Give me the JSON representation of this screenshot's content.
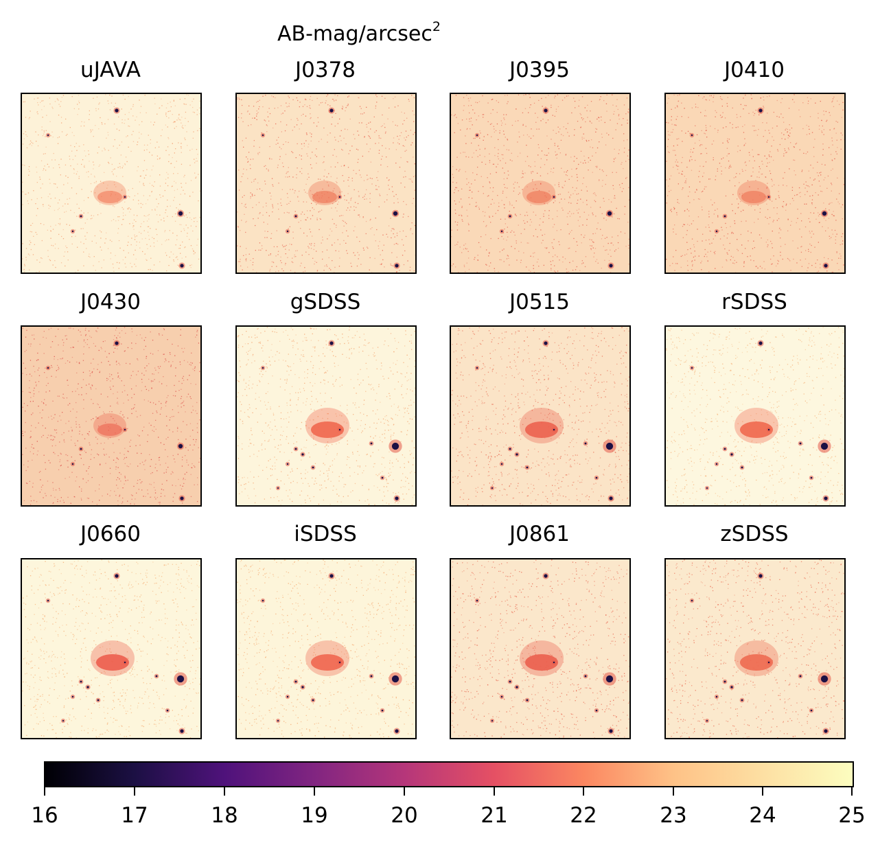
{
  "colorbar": {
    "label_text": "AB-mag/arcsec",
    "label_exponent": "2",
    "colormap": "magma",
    "range": [
      16,
      25
    ],
    "ticks": [
      "16",
      "17",
      "18",
      "19",
      "20",
      "21",
      "22",
      "23",
      "24",
      "25"
    ]
  },
  "panels": [
    {
      "title": "uJAVA",
      "background": "#fdf2d8",
      "noise": "#f39b6c",
      "galaxy": "#f17a5a"
    },
    {
      "title": "J0378",
      "background": "#fbe3c4",
      "noise": "#e8634f",
      "galaxy": "#ee7052"
    },
    {
      "title": "J0395",
      "background": "#fad9b8",
      "noise": "#e35a4a",
      "galaxy": "#ee7354"
    },
    {
      "title": "J0410",
      "background": "#fad8b6",
      "noise": "#e35a4a",
      "galaxy": "#ee7052"
    },
    {
      "title": "J0430",
      "background": "#f7cfae",
      "noise": "#dc4d49",
      "galaxy": "#ec6350"
    },
    {
      "title": "gSDSS",
      "background": "#fdf5dc",
      "noise": "#f4a06a",
      "galaxy": "#f0684f"
    },
    {
      "title": "J0515",
      "background": "#fbe4c7",
      "noise": "#e86a52",
      "galaxy": "#ec6350"
    },
    {
      "title": "rSDSS",
      "background": "#fdf7df",
      "noise": "#f6b178",
      "galaxy": "#f0684f"
    },
    {
      "title": "J0660",
      "background": "#fdf6dc",
      "noise": "#f6ac72",
      "galaxy": "#ec5e4e"
    },
    {
      "title": "iSDSS",
      "background": "#fdf5da",
      "noise": "#f5a870",
      "galaxy": "#ef6750"
    },
    {
      "title": "J0861",
      "background": "#fbe7cb",
      "noise": "#e86650",
      "galaxy": "#eb5f4e"
    },
    {
      "title": "zSDSS",
      "background": "#fbe9cd",
      "noise": "#ea6b52",
      "galaxy": "#ee6a51"
    }
  ]
}
